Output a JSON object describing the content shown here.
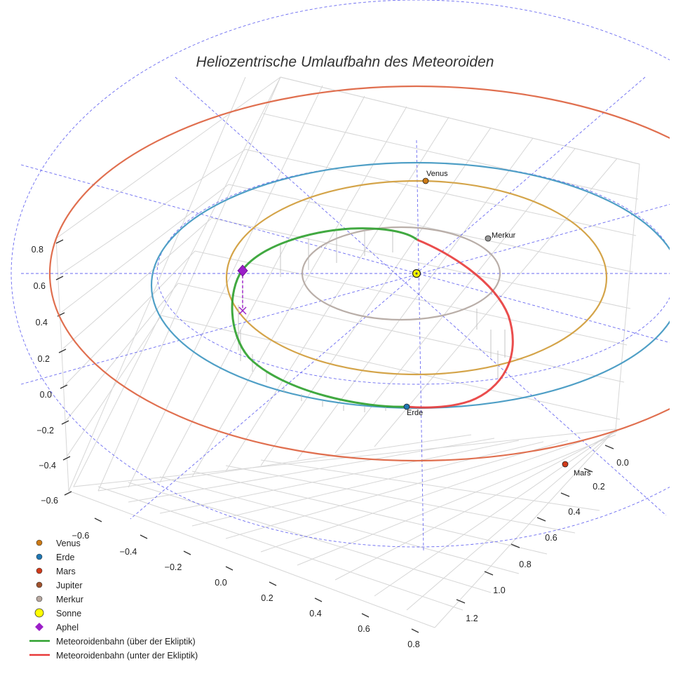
{
  "chart_data": {
    "type": "3d-line",
    "title": "Heliozentrische Umlaufbahn des Meteoroiden",
    "axes": {
      "x_ticks": [
        "−0.6",
        "−0.4",
        "−0.2",
        "0.0",
        "0.2",
        "0.4",
        "0.6",
        "0.8"
      ],
      "y_ticks": [
        "0.0",
        "0.2",
        "0.4",
        "0.6",
        "0.8",
        "1.0",
        "1.2"
      ],
      "z_ticks": [
        "−0.6",
        "−0.4",
        "−0.2",
        "0.0",
        "0.2",
        "0.4",
        "0.6",
        "0.8"
      ]
    },
    "orbits": [
      {
        "name": "Merkur",
        "radius_au": 0.39,
        "color": "#b9aea8"
      },
      {
        "name": "Venus",
        "radius_au": 0.72,
        "color": "#d4a449"
      },
      {
        "name": "Erde",
        "radius_au": 1.0,
        "color": "#4f9fc6"
      },
      {
        "name": "Mars",
        "radius_au": 1.52,
        "color": "#e06f4f"
      }
    ],
    "planet_labels": [
      {
        "name": "Venus",
        "color": "#cc7a15"
      },
      {
        "name": "Merkur",
        "color": "#9a9a9a"
      },
      {
        "name": "Erde",
        "color": "#1f77b4"
      },
      {
        "name": "Mars",
        "color": "#d03a1a"
      }
    ],
    "meteoroid": {
      "above_color": "#2ca02c",
      "below_color": "#e83a3a",
      "aphel_color": "#9b1ec8"
    },
    "legend": [
      {
        "label": "Venus",
        "marker": "circle",
        "color": "#cc7a15"
      },
      {
        "label": "Erde",
        "marker": "circle",
        "color": "#1f77b4"
      },
      {
        "label": "Mars",
        "marker": "circle",
        "color": "#d03a1a"
      },
      {
        "label": "Jupiter",
        "marker": "circle",
        "color": "#a0522d"
      },
      {
        "label": "Merkur",
        "marker": "circle",
        "color": "#b8a8a0"
      },
      {
        "label": "Sonne",
        "marker": "circle-large",
        "color": "#ffff00"
      },
      {
        "label": "Aphel",
        "marker": "diamond",
        "color": "#9b1ec8"
      },
      {
        "label": "Meteoroidenbahn (über der Ekliptik)",
        "marker": "line",
        "color": "#2ca02c"
      },
      {
        "label": "Meteoroidenbahn (unter der Ekliptik)",
        "marker": "line",
        "color": "#e83a3a"
      }
    ]
  }
}
